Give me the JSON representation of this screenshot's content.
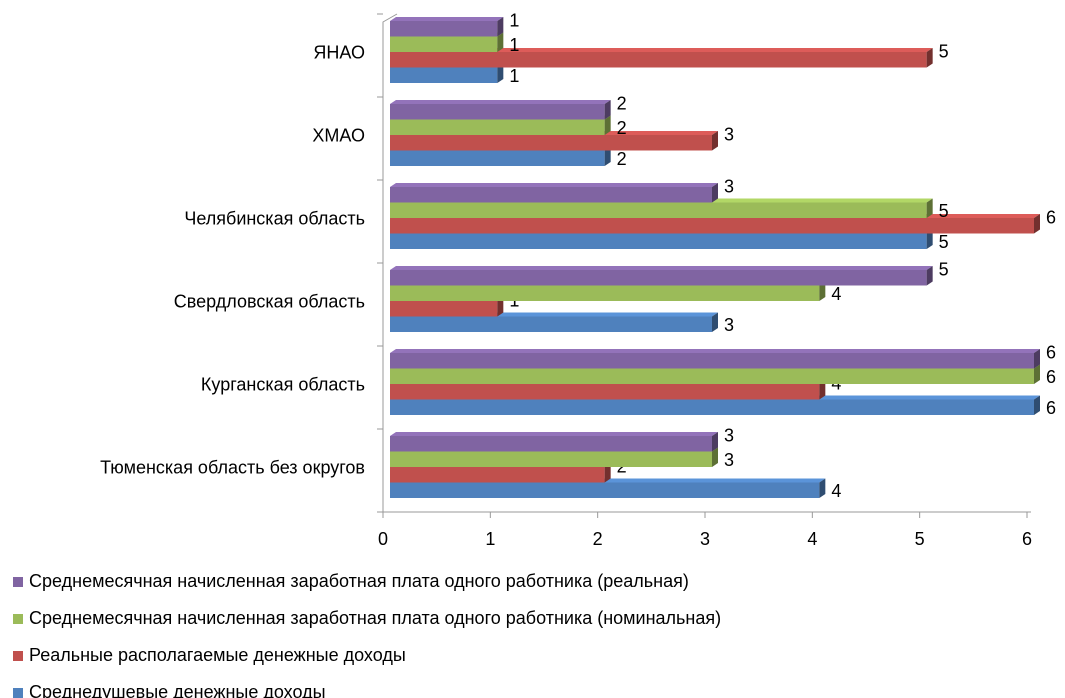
{
  "chart_data": {
    "type": "bar",
    "orientation": "horizontal",
    "categories": [
      "Тюменская область без округов",
      "Курганская область",
      "Свердловская область",
      "Челябинская область",
      "ХМАО",
      "ЯНАО"
    ],
    "series": [
      {
        "name": "Среднедушевые денежные доходы",
        "color": "#4f81bd",
        "values": [
          4,
          6,
          3,
          5,
          2,
          1
        ]
      },
      {
        "name": "Реальные располагаемые денежные доходы",
        "color": "#c0504d",
        "values": [
          2,
          4,
          1,
          6,
          3,
          5
        ]
      },
      {
        "name": "Среднемесячная начисленная заработная плата одного работника (номинальная)",
        "color": "#9bbb59",
        "values": [
          3,
          6,
          4,
          5,
          2,
          1
        ]
      },
      {
        "name": "Среднемесячная начисленная заработная плата одного работника (реальная)",
        "color": "#8064a2",
        "values": [
          3,
          6,
          5,
          3,
          2,
          1
        ]
      }
    ],
    "xlim": [
      0,
      6
    ],
    "xticks": [
      0,
      1,
      2,
      3,
      4,
      5,
      6
    ]
  }
}
